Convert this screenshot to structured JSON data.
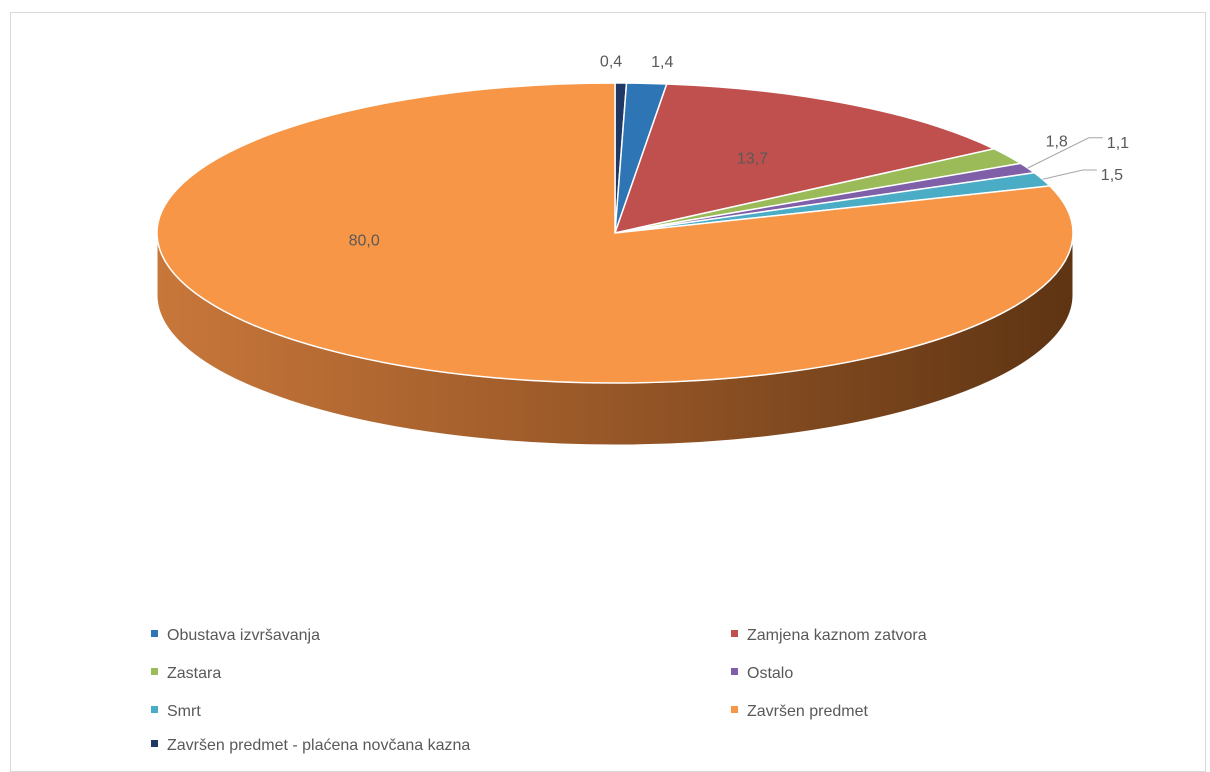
{
  "chart_data": {
    "type": "pie",
    "style": "3d",
    "title": "",
    "show_data_labels": true,
    "legend_position": "bottom",
    "slices": [
      {
        "label": "Završen predmet - plaćena novčana kazna",
        "value": 0.4,
        "display": "0,4",
        "color": "#1f3864"
      },
      {
        "label": "Obustava izvršavanja",
        "value": 1.4,
        "display": "1,4",
        "color": "#2e75b6"
      },
      {
        "label": "Zamjena kaznom zatvora",
        "value": 13.7,
        "display": "13,7",
        "color": "#c0504d"
      },
      {
        "label": "Zastara",
        "value": 1.8,
        "display": "1,8",
        "color": "#9bbb59"
      },
      {
        "label": "Ostalo",
        "value": 1.1,
        "display": "1,1",
        "color": "#7f5fa8"
      },
      {
        "label": "Smrt",
        "value": 1.5,
        "display": "1,5",
        "color": "#4bacc6"
      },
      {
        "label": "Završen predmet",
        "value": 80.0,
        "display": "80,0",
        "color": "#f79646"
      }
    ],
    "legend": [
      {
        "label": "Obustava izvršavanja",
        "color": "#2e75b6"
      },
      {
        "label": "Zamjena kaznom zatvora",
        "color": "#c0504d"
      },
      {
        "label": "Zastara",
        "color": "#9bbb59"
      },
      {
        "label": "Ostalo",
        "color": "#7f5fa8"
      },
      {
        "label": "Smrt",
        "color": "#4bacc6"
      },
      {
        "label": "Završen predmet",
        "color": "#f79646"
      },
      {
        "label": "Završen predmet - plaćena novčana kazna",
        "color": "#1f3864"
      }
    ]
  }
}
